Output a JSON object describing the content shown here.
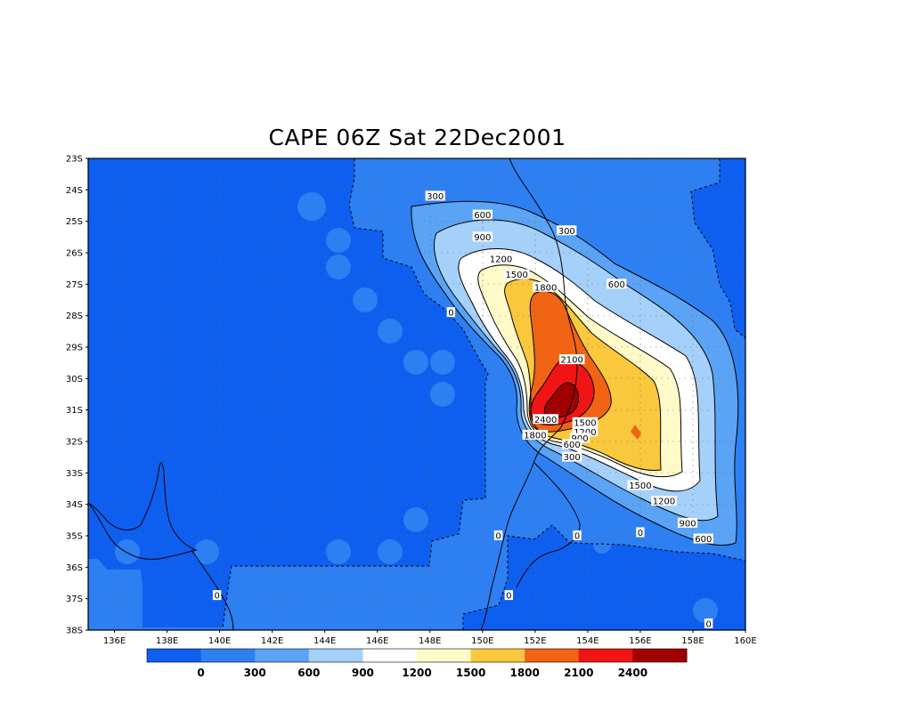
{
  "title": "CAPE 06Z Sat 22Dec2001",
  "map": {
    "lat_labels": [
      "23S",
      "24S",
      "25S",
      "26S",
      "27S",
      "28S",
      "29S",
      "30S",
      "31S",
      "32S",
      "33S",
      "34S",
      "35S",
      "36S",
      "37S",
      "38S"
    ],
    "lon_labels": [
      "136E",
      "138E",
      "140E",
      "142E",
      "144E",
      "146E",
      "148E",
      "150E",
      "152E",
      "154E",
      "156E",
      "158E",
      "160E"
    ],
    "lat_range": [
      -38,
      -23
    ],
    "lon_range": [
      135,
      160
    ],
    "grid": true
  },
  "contour_labels": [
    {
      "text": "300",
      "lon": 148.2,
      "lat": -24.2
    },
    {
      "text": "600",
      "lon": 150.0,
      "lat": -24.8
    },
    {
      "text": "900",
      "lon": 150.0,
      "lat": -25.5
    },
    {
      "text": "1200",
      "lon": 150.7,
      "lat": -26.2
    },
    {
      "text": "1500",
      "lon": 151.3,
      "lat": -26.7
    },
    {
      "text": "1800",
      "lon": 152.4,
      "lat": -27.1
    },
    {
      "text": "300",
      "lon": 153.2,
      "lat": -25.3
    },
    {
      "text": "600",
      "lon": 155.1,
      "lat": -27.0
    },
    {
      "text": "0",
      "lon": 148.8,
      "lat": -27.9
    },
    {
      "text": "2100",
      "lon": 153.4,
      "lat": -29.4
    },
    {
      "text": "2400",
      "lon": 152.4,
      "lat": -31.3
    },
    {
      "text": "1500",
      "lon": 153.9,
      "lat": -31.4
    },
    {
      "text": "1200",
      "lon": 153.9,
      "lat": -31.7
    },
    {
      "text": "900",
      "lon": 153.7,
      "lat": -31.9
    },
    {
      "text": "1800",
      "lon": 152.0,
      "lat": -31.8
    },
    {
      "text": "600",
      "lon": 153.4,
      "lat": -32.1
    },
    {
      "text": "300",
      "lon": 153.4,
      "lat": -32.5
    },
    {
      "text": "1500",
      "lon": 156.0,
      "lat": -33.4
    },
    {
      "text": "1200",
      "lon": 156.9,
      "lat": -33.9
    },
    {
      "text": "900",
      "lon": 157.8,
      "lat": -34.6
    },
    {
      "text": "600",
      "lon": 158.4,
      "lat": -35.1
    },
    {
      "text": "0",
      "lon": 150.6,
      "lat": -35.0
    },
    {
      "text": "0",
      "lon": 153.6,
      "lat": -35.0
    },
    {
      "text": "0",
      "lon": 156.0,
      "lat": -34.9
    },
    {
      "text": "0",
      "lon": 151.0,
      "lat": -36.9
    },
    {
      "text": "0",
      "lon": 139.9,
      "lat": -36.9
    },
    {
      "text": "0",
      "lon": 158.6,
      "lat": -37.8
    }
  ],
  "colorbar": {
    "labels": [
      "0",
      "300",
      "600",
      "900",
      "1200",
      "1500",
      "1800",
      "2100",
      "2400"
    ],
    "colors": [
      "#0e5ff0",
      "#2e7ff2",
      "#5aa3f5",
      "#a5d0fa",
      "#ffffff",
      "#fffac8",
      "#fac83c",
      "#f06414",
      "#f01414",
      "#a00000"
    ]
  },
  "colors": {
    "level_0": "#0e5ff0",
    "level_0_300": "#2e7ff2",
    "level_300_600": "#5aa3f5",
    "level_600_900": "#a5d0fa",
    "level_900_1200": "#ffffff",
    "level_1200_1500": "#fffac8",
    "level_1500_1800": "#fac83c",
    "level_1800_2100": "#f06414",
    "level_2100_2400": "#f01414",
    "level_2400_plus": "#a00000"
  }
}
